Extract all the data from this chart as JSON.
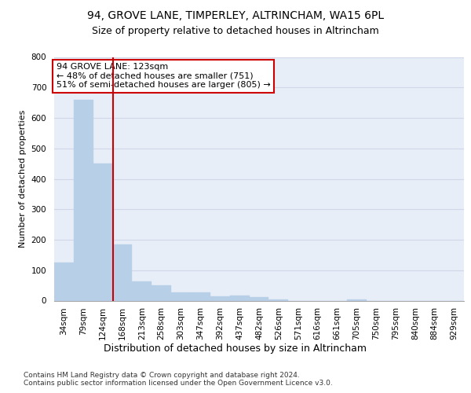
{
  "title_line1": "94, GROVE LANE, TIMPERLEY, ALTRINCHAM, WA15 6PL",
  "title_line2": "Size of property relative to detached houses in Altrincham",
  "xlabel": "Distribution of detached houses by size in Altrincham",
  "ylabel": "Number of detached properties",
  "footnote": "Contains HM Land Registry data © Crown copyright and database right 2024.\nContains public sector information licensed under the Open Government Licence v3.0.",
  "categories": [
    "34sqm",
    "79sqm",
    "124sqm",
    "168sqm",
    "213sqm",
    "258sqm",
    "303sqm",
    "347sqm",
    "392sqm",
    "437sqm",
    "482sqm",
    "526sqm",
    "571sqm",
    "616sqm",
    "661sqm",
    "705sqm",
    "750sqm",
    "795sqm",
    "840sqm",
    "884sqm",
    "929sqm"
  ],
  "values": [
    125,
    660,
    450,
    185,
    62,
    50,
    28,
    28,
    13,
    16,
    12,
    5,
    0,
    0,
    0,
    5,
    0,
    0,
    0,
    0,
    0
  ],
  "bar_color": "#b8cfe8",
  "bar_edge_color": "#b8cfe8",
  "vline_color": "#cc0000",
  "annotation_text": "94 GROVE LANE: 123sqm\n← 48% of detached houses are smaller (751)\n51% of semi-detached houses are larger (805) →",
  "annotation_box_color": "white",
  "annotation_box_edge": "#cc0000",
  "ylim": [
    0,
    800
  ],
  "yticks": [
    0,
    100,
    200,
    300,
    400,
    500,
    600,
    700,
    800
  ],
  "grid_color": "#d0d8e8",
  "plot_bg_color": "#e8eef8",
  "title1_fontsize": 10,
  "title2_fontsize": 9,
  "xlabel_fontsize": 9,
  "ylabel_fontsize": 8,
  "tick_fontsize": 7.5,
  "annotation_fontsize": 8,
  "footnote_fontsize": 6.5
}
